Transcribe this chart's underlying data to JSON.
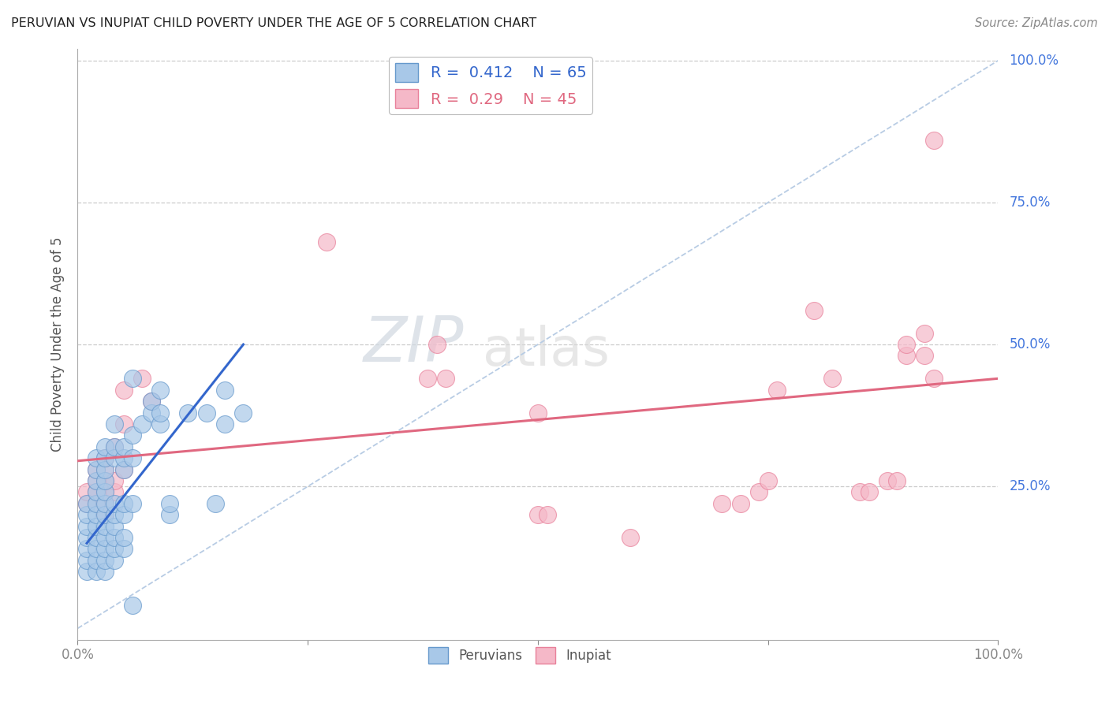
{
  "title": "PERUVIAN VS INUPIAT CHILD POVERTY UNDER THE AGE OF 5 CORRELATION CHART",
  "source": "Source: ZipAtlas.com",
  "ylabel": "Child Poverty Under the Age of 5",
  "blue_R": 0.412,
  "blue_N": 65,
  "pink_R": 0.29,
  "pink_N": 45,
  "blue_color": "#a8c8e8",
  "pink_color": "#f5b8c8",
  "blue_edge_color": "#6699cc",
  "pink_edge_color": "#e8809a",
  "blue_line_color": "#3366cc",
  "pink_line_color": "#e06880",
  "diagonal_color": "#b8cce4",
  "background_color": "#ffffff",
  "grid_color": "#cccccc",
  "watermark_zip": "ZIP",
  "watermark_atlas": "atlas",
  "right_label_color": "#4477dd",
  "blue_scatter": [
    [
      0.01,
      0.1
    ],
    [
      0.01,
      0.12
    ],
    [
      0.01,
      0.14
    ],
    [
      0.01,
      0.16
    ],
    [
      0.01,
      0.18
    ],
    [
      0.01,
      0.2
    ],
    [
      0.01,
      0.22
    ],
    [
      0.02,
      0.1
    ],
    [
      0.02,
      0.12
    ],
    [
      0.02,
      0.14
    ],
    [
      0.02,
      0.16
    ],
    [
      0.02,
      0.18
    ],
    [
      0.02,
      0.2
    ],
    [
      0.02,
      0.22
    ],
    [
      0.02,
      0.24
    ],
    [
      0.02,
      0.26
    ],
    [
      0.02,
      0.28
    ],
    [
      0.02,
      0.3
    ],
    [
      0.03,
      0.1
    ],
    [
      0.03,
      0.12
    ],
    [
      0.03,
      0.14
    ],
    [
      0.03,
      0.16
    ],
    [
      0.03,
      0.18
    ],
    [
      0.03,
      0.2
    ],
    [
      0.03,
      0.22
    ],
    [
      0.03,
      0.24
    ],
    [
      0.03,
      0.26
    ],
    [
      0.03,
      0.28
    ],
    [
      0.03,
      0.3
    ],
    [
      0.03,
      0.32
    ],
    [
      0.04,
      0.12
    ],
    [
      0.04,
      0.14
    ],
    [
      0.04,
      0.16
    ],
    [
      0.04,
      0.18
    ],
    [
      0.04,
      0.2
    ],
    [
      0.04,
      0.22
    ],
    [
      0.04,
      0.3
    ],
    [
      0.04,
      0.32
    ],
    [
      0.04,
      0.36
    ],
    [
      0.05,
      0.14
    ],
    [
      0.05,
      0.16
    ],
    [
      0.05,
      0.2
    ],
    [
      0.05,
      0.22
    ],
    [
      0.05,
      0.28
    ],
    [
      0.05,
      0.3
    ],
    [
      0.05,
      0.32
    ],
    [
      0.06,
      0.22
    ],
    [
      0.06,
      0.3
    ],
    [
      0.06,
      0.34
    ],
    [
      0.06,
      0.44
    ],
    [
      0.07,
      0.36
    ],
    [
      0.08,
      0.38
    ],
    [
      0.08,
      0.4
    ],
    [
      0.09,
      0.36
    ],
    [
      0.09,
      0.38
    ],
    [
      0.09,
      0.42
    ],
    [
      0.1,
      0.2
    ],
    [
      0.1,
      0.22
    ],
    [
      0.12,
      0.38
    ],
    [
      0.14,
      0.38
    ],
    [
      0.15,
      0.22
    ],
    [
      0.16,
      0.36
    ],
    [
      0.16,
      0.42
    ],
    [
      0.18,
      0.38
    ],
    [
      0.06,
      0.04
    ]
  ],
  "pink_scatter": [
    [
      0.01,
      0.22
    ],
    [
      0.01,
      0.24
    ],
    [
      0.02,
      0.22
    ],
    [
      0.02,
      0.24
    ],
    [
      0.02,
      0.26
    ],
    [
      0.02,
      0.28
    ],
    [
      0.03,
      0.2
    ],
    [
      0.03,
      0.22
    ],
    [
      0.03,
      0.24
    ],
    [
      0.03,
      0.26
    ],
    [
      0.03,
      0.28
    ],
    [
      0.03,
      0.3
    ],
    [
      0.04,
      0.24
    ],
    [
      0.04,
      0.26
    ],
    [
      0.04,
      0.32
    ],
    [
      0.05,
      0.28
    ],
    [
      0.05,
      0.36
    ],
    [
      0.05,
      0.42
    ],
    [
      0.07,
      0.44
    ],
    [
      0.08,
      0.4
    ],
    [
      0.27,
      0.68
    ],
    [
      0.38,
      0.44
    ],
    [
      0.39,
      0.5
    ],
    [
      0.4,
      0.44
    ],
    [
      0.5,
      0.38
    ],
    [
      0.5,
      0.2
    ],
    [
      0.51,
      0.2
    ],
    [
      0.6,
      0.16
    ],
    [
      0.7,
      0.22
    ],
    [
      0.72,
      0.22
    ],
    [
      0.74,
      0.24
    ],
    [
      0.75,
      0.26
    ],
    [
      0.76,
      0.42
    ],
    [
      0.8,
      0.56
    ],
    [
      0.82,
      0.44
    ],
    [
      0.85,
      0.24
    ],
    [
      0.86,
      0.24
    ],
    [
      0.88,
      0.26
    ],
    [
      0.89,
      0.26
    ],
    [
      0.9,
      0.48
    ],
    [
      0.9,
      0.5
    ],
    [
      0.92,
      0.48
    ],
    [
      0.92,
      0.52
    ],
    [
      0.93,
      0.44
    ],
    [
      0.93,
      0.86
    ]
  ],
  "blue_line_x": [
    0.01,
    0.18
  ],
  "blue_line_y": [
    0.15,
    0.5
  ],
  "pink_line_x": [
    0.0,
    1.0
  ],
  "pink_line_y": [
    0.295,
    0.44
  ],
  "grid_values": [
    0.25,
    0.5,
    0.75,
    1.0
  ],
  "xlim": [
    0.0,
    1.0
  ],
  "ylim": [
    -0.02,
    1.02
  ]
}
